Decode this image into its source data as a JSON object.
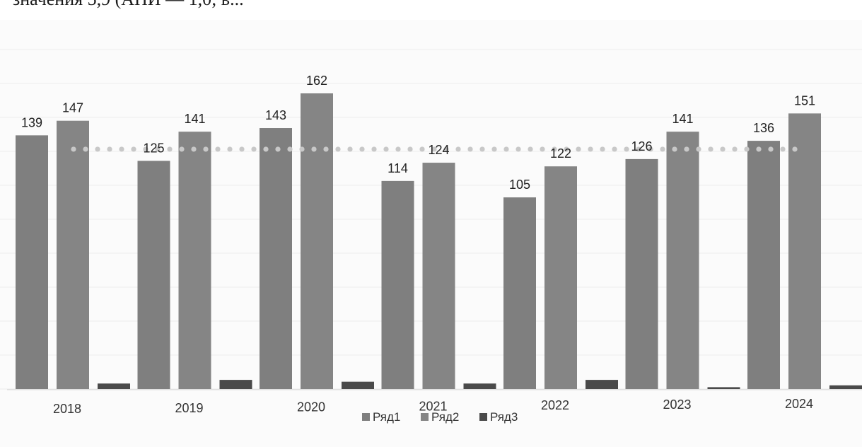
{
  "top_text": "значения 5,9 (АНИ — 1,0; в...",
  "chart_data": {
    "type": "bar",
    "categories": [
      "2018",
      "2019",
      "2020",
      "2021",
      "2022",
      "2023",
      "2024"
    ],
    "series": [
      {
        "name": "Ряд1",
        "values": [
          139,
          125,
          143,
          114,
          105,
          126,
          136
        ],
        "color": "#7f7f7f"
      },
      {
        "name": "Ряд2",
        "values": [
          147,
          141,
          162,
          124,
          122,
          141,
          151
        ],
        "color": "#858585"
      },
      {
        "name": "Ряд3",
        "values": [
          3,
          5,
          4,
          3,
          5,
          1,
          2
        ],
        "color": "#4a4a4a"
      }
    ],
    "average_line": {
      "value": 131.4,
      "style": "dotted",
      "color": "#c8c8c8"
    },
    "ylim": [
      0,
      175
    ],
    "grid": true,
    "legend": "bottom-center",
    "data_labels": true
  }
}
